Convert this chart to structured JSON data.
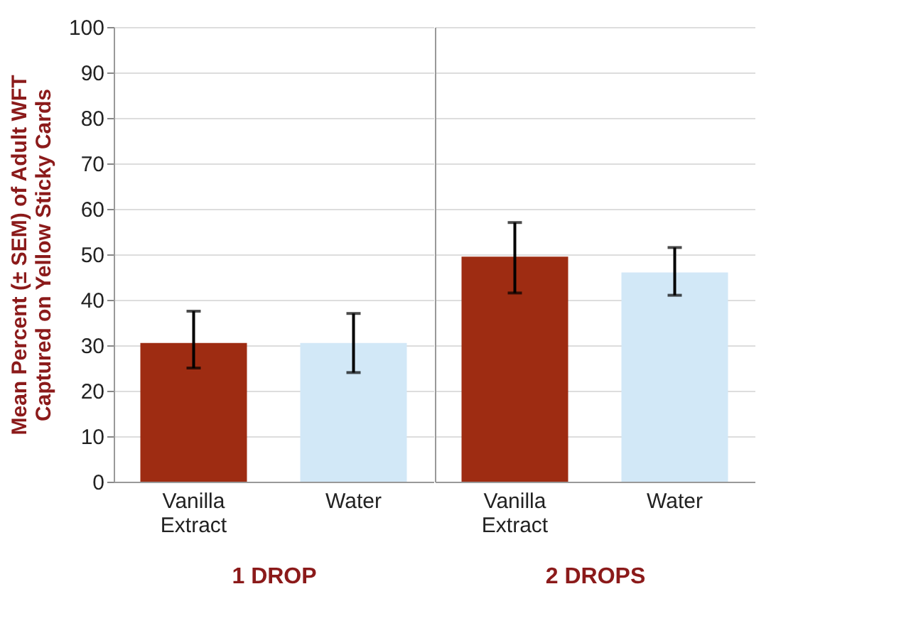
{
  "chart_data": [
    {
      "type": "bar",
      "categories": [
        "Vanilla Extract",
        "Water"
      ],
      "values": [
        30.5,
        30.5
      ],
      "colors": [
        "#9e2c12",
        "#d2e8f7"
      ],
      "errors": [
        [
          25,
          37.5
        ],
        [
          24,
          37
        ]
      ],
      "xlabel": "1 DROP",
      "ylabel": "Mean Percent (± SEM) of Adult WFT\nCaptured on Yellow Sticky Cards",
      "ylim": [
        0,
        100
      ],
      "yticks": [
        0,
        10,
        20,
        30,
        40,
        50,
        60,
        70,
        80,
        90,
        100
      ],
      "grid": "y"
    },
    {
      "type": "bar",
      "categories": [
        "Vanilla Extract",
        "Water"
      ],
      "values": [
        49.5,
        46
      ],
      "colors": [
        "#9e2c12",
        "#d2e8f7"
      ],
      "errors": [
        [
          41.5,
          57
        ],
        [
          41,
          51.5
        ]
      ],
      "xlabel": "2 DROPS",
      "ylim": [
        0,
        100
      ],
      "yticks": [
        0,
        10,
        20,
        30,
        40,
        50,
        60,
        70,
        80,
        90,
        100
      ],
      "grid": "y",
      "tick_labels": "x"
    }
  ]
}
